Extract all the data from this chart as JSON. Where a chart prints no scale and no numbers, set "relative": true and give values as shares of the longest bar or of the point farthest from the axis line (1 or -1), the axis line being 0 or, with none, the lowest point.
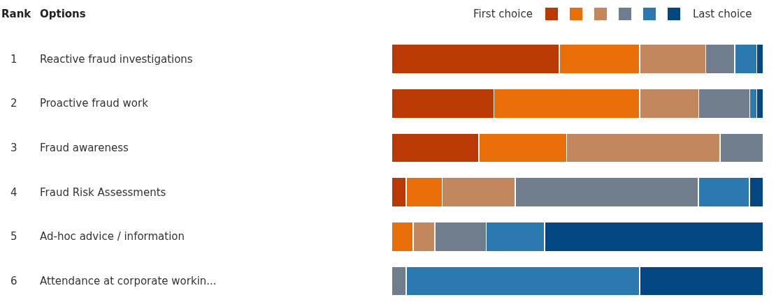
{
  "chart_data": {
    "type": "bar",
    "orientation": "horizontal",
    "stacked": true,
    "relative": true,
    "legend": "top right",
    "ylabel": "Options",
    "categories": [
      "Reactive fraud investigations",
      "Proactive fraud work",
      "Fraud awareness",
      "Fraud Risk Assessments",
      "Ad-hoc advice / information",
      "Attendance at corporate workin..."
    ],
    "series": [
      {
        "name": "First choice",
        "color": "#bb3a03",
        "values": [
          0.451,
          0.275,
          0.235,
          0.039,
          0,
          0
        ]
      },
      {
        "color": "#ea6e08",
        "values": [
          0.216,
          0.392,
          0.236,
          0.097,
          0.058,
          0
        ]
      },
      {
        "color": "#c3875d",
        "values": [
          0.178,
          0.159,
          0.412,
          0.197,
          0.059,
          0
        ]
      },
      {
        "color": "#6f7d8c",
        "values": [
          0.078,
          0.137,
          0.117,
          0.492,
          0.138,
          0.039
        ]
      },
      {
        "color": "#2c79b0",
        "values": [
          0.059,
          0.019,
          0,
          0.137,
          0.157,
          0.628
        ]
      },
      {
        "name": "Last choice",
        "color": "#02477f",
        "values": [
          0.018,
          0.018,
          0,
          0.038,
          0.588,
          0.333
        ]
      }
    ],
    "annotations": [
      "Rank",
      "1",
      "2",
      "3",
      "4",
      "5",
      "6"
    ]
  }
}
